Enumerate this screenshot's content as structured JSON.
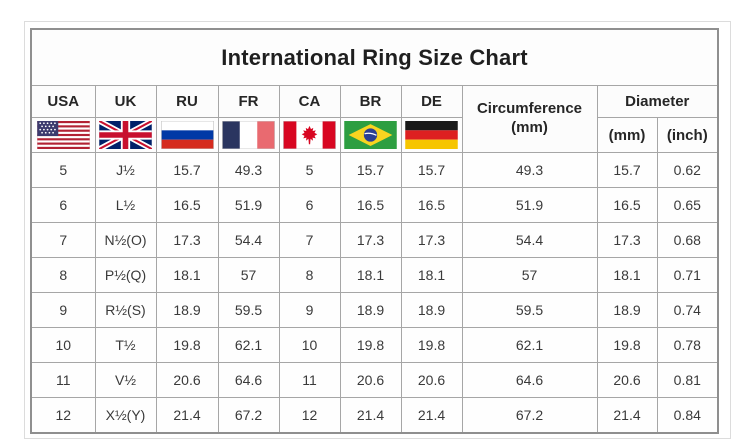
{
  "title": "International Ring Size Chart",
  "header": {
    "countries": [
      "USA",
      "UK",
      "RU",
      "FR",
      "CA",
      "BR",
      "DE"
    ],
    "circumference_line1": "Circumference",
    "circumference_line2": "(mm)",
    "diameter": "Diameter",
    "diameter_mm": "(mm)",
    "diameter_inch": "(inch)"
  },
  "flag_icons": [
    "usa-flag",
    "uk-flag",
    "russia-flag",
    "france-flag",
    "canada-flag",
    "brazil-flag",
    "germany-flag"
  ],
  "column_keys": [
    "usa",
    "uk",
    "ru",
    "fr",
    "ca",
    "br",
    "de",
    "circumference",
    "diameter_mm",
    "diameter_inch"
  ],
  "rows": [
    {
      "usa": "5",
      "uk": "J½",
      "ru": "15.7",
      "fr": "49.3",
      "ca": "5",
      "br": "15.7",
      "de": "15.7",
      "circumference": "49.3",
      "diameter_mm": "15.7",
      "diameter_inch": "0.62"
    },
    {
      "usa": "6",
      "uk": "L½",
      "ru": "16.5",
      "fr": "51.9",
      "ca": "6",
      "br": "16.5",
      "de": "16.5",
      "circumference": "51.9",
      "diameter_mm": "16.5",
      "diameter_inch": "0.65"
    },
    {
      "usa": "7",
      "uk": "N½(O)",
      "ru": "17.3",
      "fr": "54.4",
      "ca": "7",
      "br": "17.3",
      "de": "17.3",
      "circumference": "54.4",
      "diameter_mm": "17.3",
      "diameter_inch": "0.68"
    },
    {
      "usa": "8",
      "uk": "P½(Q)",
      "ru": "18.1",
      "fr": "57",
      "ca": "8",
      "br": "18.1",
      "de": "18.1",
      "circumference": "57",
      "diameter_mm": "18.1",
      "diameter_inch": "0.71"
    },
    {
      "usa": "9",
      "uk": "R½(S)",
      "ru": "18.9",
      "fr": "59.5",
      "ca": "9",
      "br": "18.9",
      "de": "18.9",
      "circumference": "59.5",
      "diameter_mm": "18.9",
      "diameter_inch": "0.74"
    },
    {
      "usa": "10",
      "uk": "T½",
      "ru": "19.8",
      "fr": "62.1",
      "ca": "10",
      "br": "19.8",
      "de": "19.8",
      "circumference": "62.1",
      "diameter_mm": "19.8",
      "diameter_inch": "0.78"
    },
    {
      "usa": "11",
      "uk": "V½",
      "ru": "20.6",
      "fr": "64.6",
      "ca": "11",
      "br": "20.6",
      "de": "20.6",
      "circumference": "64.6",
      "diameter_mm": "20.6",
      "diameter_inch": "0.81"
    },
    {
      "usa": "12",
      "uk": "X½(Y)",
      "ru": "21.4",
      "fr": "67.2",
      "ca": "12",
      "br": "21.4",
      "de": "21.4",
      "circumference": "67.2",
      "diameter_mm": "21.4",
      "diameter_inch": "0.84"
    }
  ],
  "colors": {
    "table_border": "#8f8f8f",
    "cell_border": "#a6a6a6",
    "text": "#333333",
    "usa_red": "#b22234",
    "usa_blue": "#3c3b6e",
    "uk_blue": "#012169",
    "uk_red": "#c8102e",
    "ru_blue": "#0039a6",
    "ru_red": "#d52b1e",
    "fr_blue": "#2a3560",
    "fr_red": "#e96a70",
    "ca_red": "#d80621",
    "br_green": "#2d9e41",
    "br_yellow": "#fmdf00",
    "br_blue": "#2a3f92",
    "de_black": "#1a1a1a",
    "de_red": "#dd2021",
    "de_gold": "#f6c500"
  },
  "chart_data": {
    "type": "table",
    "title": "International Ring Size Chart",
    "columns": [
      "USA",
      "UK",
      "RU",
      "FR",
      "CA",
      "BR",
      "DE",
      "Circumference (mm)",
      "Diameter (mm)",
      "Diameter (inch)"
    ],
    "rows": [
      [
        "5",
        "J½",
        "15.7",
        "49.3",
        "5",
        "15.7",
        "15.7",
        "49.3",
        "15.7",
        "0.62"
      ],
      [
        "6",
        "L½",
        "16.5",
        "51.9",
        "6",
        "16.5",
        "16.5",
        "51.9",
        "16.5",
        "0.65"
      ],
      [
        "7",
        "N½(O)",
        "17.3",
        "54.4",
        "7",
        "17.3",
        "17.3",
        "54.4",
        "17.3",
        "0.68"
      ],
      [
        "8",
        "P½(Q)",
        "18.1",
        "57",
        "8",
        "18.1",
        "18.1",
        "57",
        "18.1",
        "0.71"
      ],
      [
        "9",
        "R½(S)",
        "18.9",
        "59.5",
        "9",
        "18.9",
        "18.9",
        "59.5",
        "18.9",
        "0.74"
      ],
      [
        "10",
        "T½",
        "19.8",
        "62.1",
        "10",
        "19.8",
        "19.8",
        "62.1",
        "19.8",
        "0.78"
      ],
      [
        "11",
        "V½",
        "20.6",
        "64.6",
        "11",
        "20.6",
        "20.6",
        "64.6",
        "20.6",
        "0.81"
      ],
      [
        "12",
        "X½(Y)",
        "21.4",
        "67.2",
        "12",
        "21.4",
        "21.4",
        "67.2",
        "21.4",
        "0.84"
      ]
    ]
  }
}
